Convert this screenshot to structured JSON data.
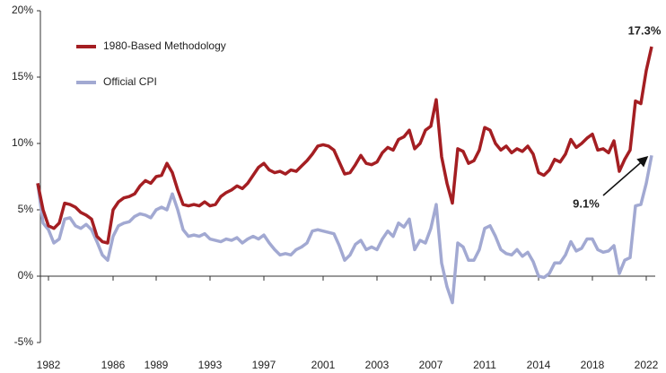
{
  "chart_data": {
    "type": "line",
    "categories": [
      null,
      null,
      "1982",
      null,
      null,
      null,
      null,
      null,
      null,
      null,
      null,
      null,
      null,
      null,
      "1986",
      null,
      null,
      null,
      null,
      null,
      null,
      null,
      "1989",
      null,
      null,
      null,
      null,
      null,
      null,
      null,
      null,
      null,
      "1993",
      null,
      null,
      null,
      null,
      null,
      null,
      null,
      null,
      null,
      "1997",
      null,
      null,
      null,
      null,
      null,
      null,
      null,
      null,
      null,
      null,
      "2001",
      null,
      null,
      null,
      null,
      null,
      null,
      null,
      null,
      null,
      "2003",
      null,
      null,
      null,
      null,
      null,
      null,
      null,
      null,
      null,
      "2007",
      null,
      null,
      null,
      null,
      null,
      null,
      null,
      null,
      null,
      "2011",
      null,
      null,
      null,
      null,
      null,
      null,
      null,
      null,
      null,
      "2014",
      null,
      null,
      null,
      null,
      null,
      null,
      null,
      null,
      null,
      "2018",
      null,
      null,
      null,
      null,
      null,
      null,
      null,
      null,
      null,
      "2022",
      null
    ],
    "series": [
      {
        "name": "1980-Based Methodology",
        "color": "#a41e22",
        "values": [
          7.0,
          5.0,
          3.8,
          3.6,
          4.0,
          5.5,
          5.4,
          5.2,
          4.8,
          4.6,
          4.3,
          3.0,
          2.6,
          2.5,
          5.0,
          5.6,
          5.9,
          6.0,
          6.2,
          6.8,
          7.2,
          7.0,
          7.5,
          7.6,
          8.5,
          7.8,
          6.5,
          5.4,
          5.3,
          5.4,
          5.3,
          5.6,
          5.3,
          5.4,
          6.0,
          6.3,
          6.5,
          6.8,
          6.6,
          7.0,
          7.6,
          8.2,
          8.5,
          8.0,
          7.8,
          7.9,
          7.7,
          8.0,
          7.9,
          8.3,
          8.7,
          9.2,
          9.8,
          9.9,
          9.8,
          9.5,
          8.6,
          7.7,
          7.8,
          8.4,
          9.1,
          8.5,
          8.4,
          8.6,
          9.3,
          9.7,
          9.5,
          10.3,
          10.5,
          11.0,
          9.6,
          10.0,
          11.0,
          11.3,
          13.3,
          9.0,
          7.0,
          5.5,
          9.6,
          9.4,
          8.5,
          8.7,
          9.5,
          11.2,
          11.0,
          10.0,
          9.5,
          9.8,
          9.3,
          9.6,
          9.4,
          9.8,
          9.2,
          7.8,
          7.6,
          8.0,
          8.8,
          8.6,
          9.2,
          10.3,
          9.7,
          10.0,
          10.4,
          10.7,
          9.5,
          9.6,
          9.3,
          10.2,
          7.9,
          8.8,
          9.5,
          13.2,
          13.0,
          15.5,
          17.3
        ]
      },
      {
        "name": "Official CPI",
        "color": "#a2a9d2",
        "values": [
          7.0,
          4.0,
          3.5,
          2.5,
          2.8,
          4.3,
          4.4,
          3.8,
          3.6,
          3.9,
          3.5,
          2.6,
          1.6,
          1.2,
          3.0,
          3.8,
          4.0,
          4.1,
          4.5,
          4.7,
          4.6,
          4.4,
          5.0,
          5.2,
          5.0,
          6.2,
          5.0,
          3.5,
          3.0,
          3.1,
          3.0,
          3.2,
          2.8,
          2.7,
          2.6,
          2.8,
          2.7,
          2.9,
          2.5,
          2.8,
          3.0,
          2.8,
          3.1,
          2.5,
          2.0,
          1.6,
          1.7,
          1.6,
          2.0,
          2.2,
          2.5,
          3.4,
          3.5,
          3.4,
          3.3,
          3.2,
          2.3,
          1.2,
          1.6,
          2.4,
          2.7,
          2.0,
          2.2,
          2.0,
          2.8,
          3.4,
          3.0,
          4.0,
          3.7,
          4.3,
          2.0,
          2.7,
          2.5,
          3.6,
          5.4,
          1.0,
          -0.8,
          -2.0,
          2.5,
          2.2,
          1.2,
          1.2,
          2.0,
          3.6,
          3.8,
          3.0,
          2.0,
          1.7,
          1.6,
          2.0,
          1.5,
          1.8,
          1.1,
          0.0,
          -0.1,
          0.2,
          1.0,
          1.0,
          1.6,
          2.6,
          1.9,
          2.1,
          2.8,
          2.8,
          2.0,
          1.8,
          1.9,
          2.3,
          0.2,
          1.2,
          1.4,
          5.3,
          5.4,
          7.0,
          9.1
        ]
      }
    ],
    "ylim": [
      -5,
      20
    ],
    "yticks": [
      {
        "value": -5,
        "label": "-5%"
      },
      {
        "value": 0,
        "label": "0%"
      },
      {
        "value": 5,
        "label": "5%"
      },
      {
        "value": 10,
        "label": "10%"
      },
      {
        "value": 15,
        "label": "15%"
      },
      {
        "value": 20,
        "label": "20%"
      }
    ],
    "grid": false,
    "legend": "upper left",
    "annotations": [
      {
        "text": "17.3%"
      },
      {
        "text": "9.1%"
      }
    ]
  }
}
